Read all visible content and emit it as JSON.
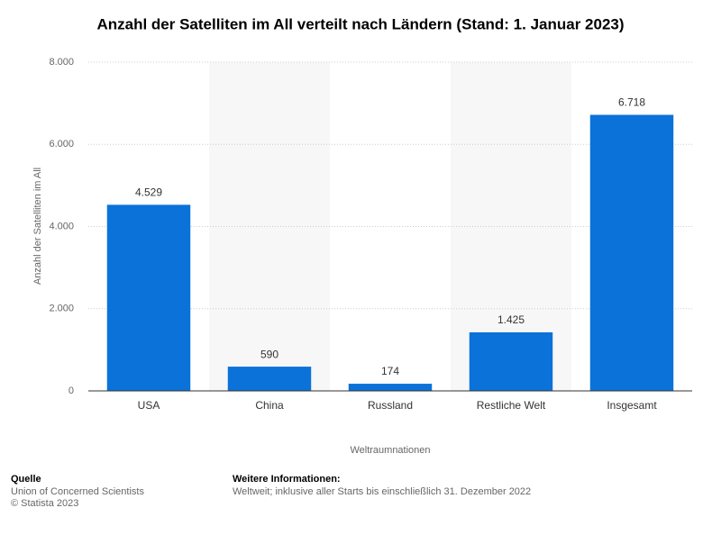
{
  "chart_data": {
    "type": "bar",
    "title": "Anzahl der Satelliten im All verteilt nach Ländern (Stand: 1. Januar 2023)",
    "y_label": "Anzahl der Satelliten im All",
    "x_label": "Weltraumnationen",
    "categories": [
      "USA",
      "China",
      "Russland",
      "Restliche Welt",
      "Insgesamt"
    ],
    "values": [
      4529,
      590,
      174,
      1425,
      6718
    ],
    "value_labels": [
      "4.529",
      "590",
      "174",
      "1.425",
      "6.718"
    ],
    "color": "#0b72d9",
    "ylim": [
      0,
      8000
    ],
    "yticks": [
      0,
      {
        "value": 2000,
        "label": "2.000"
      },
      {
        "value": 4000,
        "label": "4.000"
      },
      {
        "value": 6000,
        "label": "6.000"
      },
      {
        "value": 8000,
        "label": "8.000"
      }
    ],
    "grid": true
  },
  "source": {
    "heading": "Quelle",
    "lines": [
      "Union of Concerned Scientists",
      "© Statista 2023"
    ]
  },
  "info": {
    "heading": "Weitere Informationen:",
    "text": "Weltweit; inklusive aller Starts bis einschließlich 31. Dezember 2022"
  }
}
